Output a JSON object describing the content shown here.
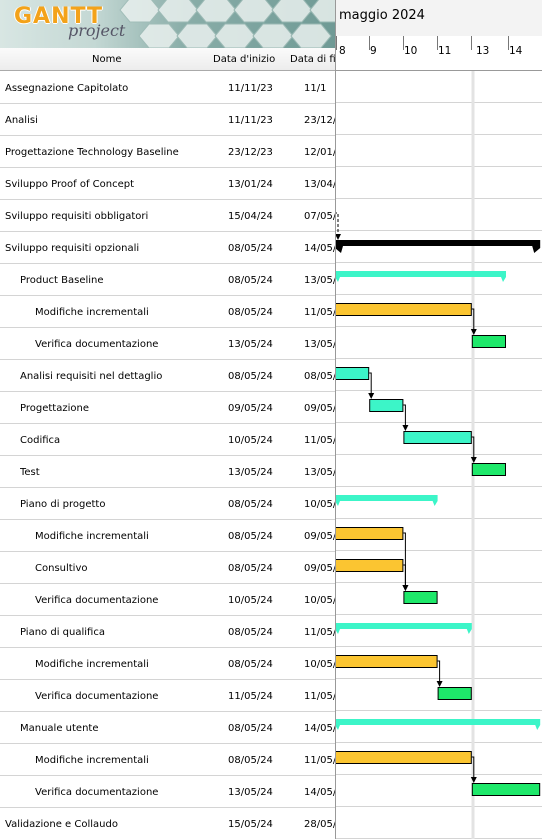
{
  "logo": {
    "brand": "GANTT",
    "sub": "project"
  },
  "columns": {
    "name": "Nome",
    "start": "Data d'inizio",
    "end": "Data di fi"
  },
  "chart_header": {
    "month": "maggio 2024",
    "days": [
      "8",
      "9",
      "10",
      "11",
      "13",
      "14"
    ]
  },
  "tasks": [
    {
      "name": "Assegnazione Capitolato",
      "level": 0,
      "start": "11/11/23",
      "end": "11/1"
    },
    {
      "name": "Analisi",
      "level": 0,
      "start": "11/11/23",
      "end": "23/12/"
    },
    {
      "name": "Progettazione Technology Baseline",
      "level": 0,
      "start": "23/12/23",
      "end": "12/01/"
    },
    {
      "name": "Sviluppo Proof of Concept",
      "level": 0,
      "start": "13/01/24",
      "end": "13/04/"
    },
    {
      "name": "Sviluppo requisiti obbligatori",
      "level": 0,
      "start": "15/04/24",
      "end": "07/05/"
    },
    {
      "name": "Sviluppo requisiti opzionali",
      "level": 0,
      "start": "08/05/24",
      "end": "14/05/"
    },
    {
      "name": "Product Baseline",
      "level": 1,
      "start": "08/05/24",
      "end": "13/05/"
    },
    {
      "name": "Modifiche incrementali",
      "level": 2,
      "start": "08/05/24",
      "end": "11/05/"
    },
    {
      "name": "Verifica documentazione",
      "level": 2,
      "start": "13/05/24",
      "end": "13/05/"
    },
    {
      "name": "Analisi requisiti nel dettaglio",
      "level": 1,
      "start": "08/05/24",
      "end": "08/05/"
    },
    {
      "name": "Progettazione",
      "level": 1,
      "start": "09/05/24",
      "end": "09/05/"
    },
    {
      "name": "Codifica",
      "level": 1,
      "start": "10/05/24",
      "end": "11/05/"
    },
    {
      "name": "Test",
      "level": 1,
      "start": "13/05/24",
      "end": "13/05/"
    },
    {
      "name": "Piano di progetto",
      "level": 1,
      "start": "08/05/24",
      "end": "10/05/"
    },
    {
      "name": "Modifiche incrementali",
      "level": 2,
      "start": "08/05/24",
      "end": "09/05/"
    },
    {
      "name": "Consultivo",
      "level": 2,
      "start": "08/05/24",
      "end": "09/05/"
    },
    {
      "name": "Verifica documentazione",
      "level": 2,
      "start": "10/05/24",
      "end": "10/05/"
    },
    {
      "name": "Piano di qualifica",
      "level": 1,
      "start": "08/05/24",
      "end": "11/05/"
    },
    {
      "name": "Modifiche incrementali",
      "level": 2,
      "start": "08/05/24",
      "end": "10/05/"
    },
    {
      "name": "Verifica documentazione",
      "level": 2,
      "start": "11/05/24",
      "end": "11/05/"
    },
    {
      "name": "Manuale utente",
      "level": 1,
      "start": "08/05/24",
      "end": "14/05/"
    },
    {
      "name": "Modifiche incrementali",
      "level": 2,
      "start": "08/05/24",
      "end": "11/05/"
    },
    {
      "name": "Verifica documentazione",
      "level": 2,
      "start": "13/05/24",
      "end": "14/05/"
    },
    {
      "name": "Validazione e Collaudo",
      "level": 0,
      "start": "15/05/24",
      "end": "28/05/"
    }
  ],
  "colors": {
    "summary": "#000000",
    "subgroup": "#3cf5c8",
    "task_cyan": "#3cf5c8",
    "task_yellow": "#fbc531",
    "task_green": "#1ee86a",
    "today_line": "#e3e3e3"
  }
}
